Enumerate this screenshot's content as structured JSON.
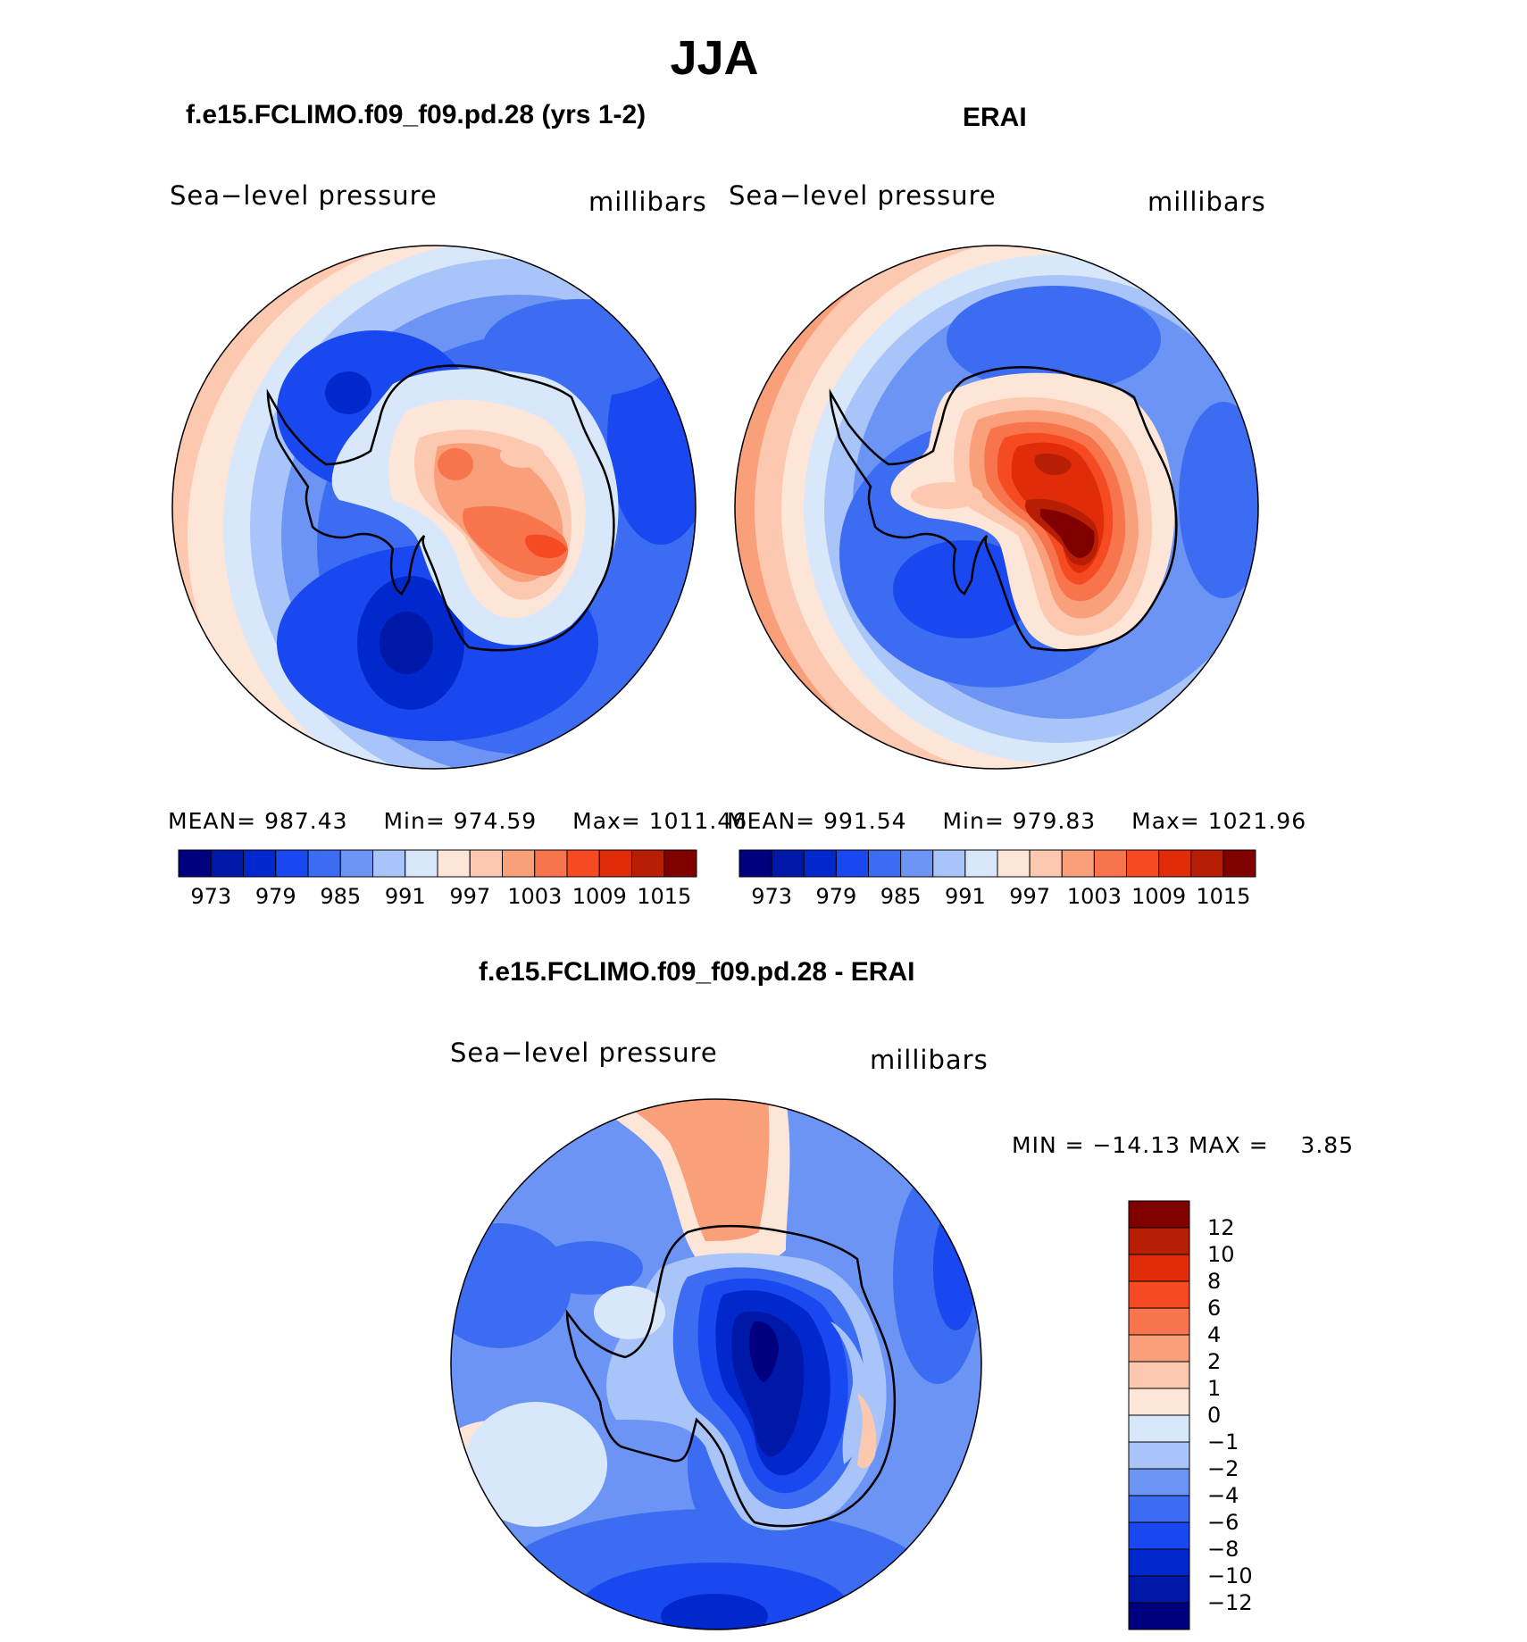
{
  "figure": {
    "title": "JJA"
  },
  "panels": [
    {
      "title": "f.e15.FCLIMO.f09_f09.pd.28 (yrs 1-2)",
      "variable": "Sea−level pressure",
      "units": "millibars",
      "stats": {
        "mean_label": "MEAN=",
        "mean": "987.43",
        "min_label": "Min=",
        "min": "974.59",
        "max_label": "Max=",
        "max": "1011.46"
      }
    },
    {
      "title": "ERAI",
      "variable": "Sea−level pressure",
      "units": "millibars",
      "stats": {
        "mean_label": "MEAN=",
        "mean": "991.54",
        "min_label": "Min=",
        "min": "979.83",
        "max_label": "Max=",
        "max": "1021.96"
      }
    }
  ],
  "abs_colorbar": {
    "colors": [
      "#00007f",
      "#0018a8",
      "#0028cc",
      "#1a48f0",
      "#3c6cf2",
      "#6c94f4",
      "#a8c4f8",
      "#d8e8fa",
      "#fde6d8",
      "#fcc8b0",
      "#f9a07a",
      "#f7744c",
      "#f64b22",
      "#e02c08",
      "#b81e04",
      "#800000"
    ],
    "ticks": [
      "973",
      "979",
      "985",
      "991",
      "997",
      "1003",
      "1009",
      "1015"
    ]
  },
  "diff_panel": {
    "title": "f.e15.FCLIMO.f09_f09.pd.28 - ERAI",
    "variable": "Sea−level pressure",
    "units": "millibars",
    "minmax": "MIN = −14.13 MAX =    3.85",
    "colorbar": {
      "colors_top_to_bottom": [
        "#800000",
        "#b81e04",
        "#e02c08",
        "#f64b22",
        "#f7744c",
        "#f9a07a",
        "#fcc8b0",
        "#fde6d8",
        "#d8e8fa",
        "#a8c4f8",
        "#6c94f4",
        "#3c6cf2",
        "#1a48f0",
        "#0028cc",
        "#0018a8",
        "#00007f"
      ],
      "ticks": [
        "12",
        "10",
        "8",
        "6",
        "4",
        "2",
        "1",
        "0",
        "−1",
        "−2",
        "−4",
        "−6",
        "−8",
        "−10",
        "−12"
      ]
    }
  }
}
